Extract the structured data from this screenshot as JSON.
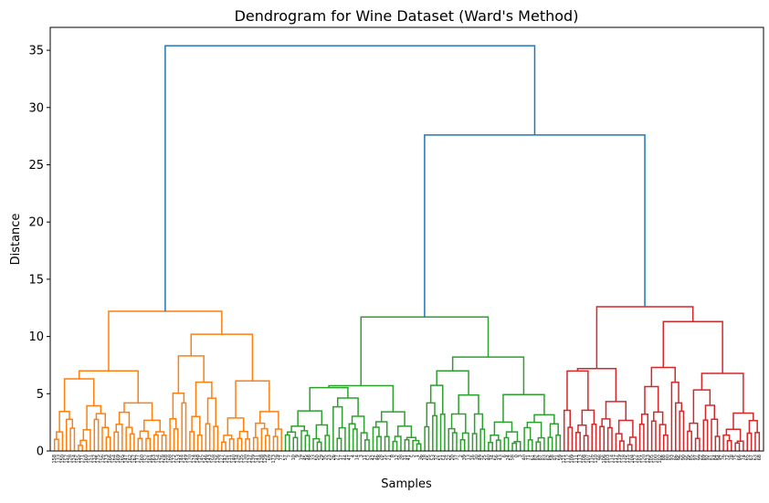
{
  "chart_data": {
    "type": "dendrogram",
    "title": "Dendrogram for Wine Dataset (Ward's Method)",
    "xlabel": "Samples",
    "ylabel": "Distance",
    "ylim": [
      0,
      37
    ],
    "yticks": [
      0,
      5,
      10,
      15,
      20,
      25,
      30,
      35
    ],
    "grid": false,
    "colors": {
      "above_threshold": "#1f77b4",
      "cluster_1": "#ff7f0e",
      "cluster_2": "#2ca02c",
      "cluster_3": "#d62728"
    },
    "clusters": [
      {
        "id": "cluster_1",
        "color": "#ff7f0e",
        "leaf_count": 58,
        "merge_height": 12.2,
        "sub_merges": [
          7.0,
          10.2,
          6.3,
          8.3
        ]
      },
      {
        "id": "cluster_2",
        "color": "#2ca02c",
        "leaf_count": 70,
        "merge_height": 11.7,
        "sub_merges": [
          5.7,
          8.2,
          8.1,
          7.0
        ]
      },
      {
        "id": "cluster_3",
        "color": "#d62728",
        "leaf_count": 50,
        "merge_height": 12.6,
        "sub_merges": [
          7.2,
          11.3,
          10.4,
          7.3
        ]
      }
    ],
    "top_links": [
      {
        "left": "cluster_2",
        "right": "cluster_3",
        "height": 27.6
      },
      {
        "left": "cluster_1",
        "right": "cluster_2+cluster_3",
        "height": 35.4
      }
    ],
    "leaf_labels": [
      "158",
      "133",
      "150",
      "157",
      "128",
      "124",
      "155",
      "171",
      "160",
      "151",
      "132",
      "175",
      "156",
      "173",
      "166",
      "164",
      "169",
      "165",
      "147",
      "162",
      "167",
      "177",
      "160",
      "152",
      "161",
      "163",
      "154",
      "176",
      "158",
      "168",
      "172",
      "153",
      "144",
      "149",
      "170",
      "174",
      "148",
      "145",
      "146",
      "143",
      "158",
      "136",
      "127",
      "142",
      "131",
      "140",
      "134",
      "135",
      "130",
      "137",
      "139",
      "141",
      "138",
      "129",
      "69",
      "173",
      "79",
      "77",
      "57",
      "7",
      "10",
      "9",
      "19",
      "45",
      "48",
      "33",
      "50",
      "29",
      "35",
      "23",
      "26",
      "27",
      "17",
      "44",
      "47",
      "4",
      "14",
      "3",
      "11",
      "52",
      "42",
      "46",
      "28",
      "15",
      "21",
      "8",
      "12",
      "38",
      "31",
      "41",
      "5",
      "1",
      "36",
      "18",
      "55",
      "53",
      "32",
      "51",
      "54",
      "22",
      "20",
      "37",
      "2",
      "39",
      "13",
      "16",
      "30",
      "49",
      "25",
      "40",
      "34",
      "56",
      "43",
      "6",
      "24",
      "58",
      "0",
      "3",
      "40",
      "71",
      "61",
      "82",
      "87",
      "83",
      "62",
      "58",
      "91",
      "59",
      "121",
      "112",
      "109",
      "111",
      "113",
      "108",
      "107",
      "116",
      "110",
      "98",
      "106",
      "103",
      "114",
      "117",
      "119",
      "118",
      "115",
      "104",
      "122",
      "101",
      "120",
      "123",
      "105",
      "100",
      "102",
      "88",
      "80",
      "93",
      "86",
      "96",
      "90",
      "95",
      "85",
      "97",
      "99",
      "89",
      "92",
      "81",
      "84",
      "94",
      "76",
      "72",
      "78",
      "75",
      "66",
      "74",
      "65",
      "67",
      "63",
      "68"
    ]
  }
}
